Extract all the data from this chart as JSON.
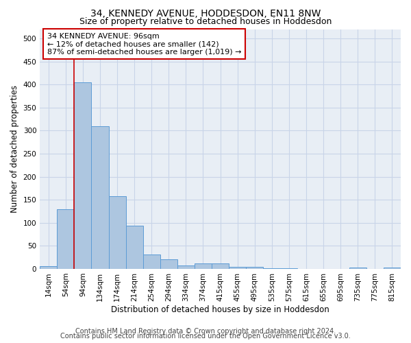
{
  "title": "34, KENNEDY AVENUE, HODDESDON, EN11 8NW",
  "subtitle": "Size of property relative to detached houses in Hoddesdon",
  "xlabel": "Distribution of detached houses by size in Hoddesdon",
  "ylabel": "Number of detached properties",
  "footer_line1": "Contains HM Land Registry data © Crown copyright and database right 2024.",
  "footer_line2": "Contains public sector information licensed under the Open Government Licence v3.0.",
  "bin_labels": [
    "14sqm",
    "54sqm",
    "94sqm",
    "134sqm",
    "174sqm",
    "214sqm",
    "254sqm",
    "294sqm",
    "334sqm",
    "374sqm",
    "415sqm",
    "455sqm",
    "495sqm",
    "535sqm",
    "575sqm",
    "615sqm",
    "655sqm",
    "695sqm",
    "735sqm",
    "775sqm",
    "815sqm"
  ],
  "bar_values": [
    6,
    130,
    405,
    310,
    157,
    93,
    31,
    21,
    7,
    12,
    12,
    5,
    5,
    2,
    2,
    0,
    0,
    0,
    3,
    0,
    3
  ],
  "bar_color": "#adc6e0",
  "bar_edge_color": "#5b9bd5",
  "property_line_color": "#cc0000",
  "annotation_text": "34 KENNEDY AVENUE: 96sqm\n← 12% of detached houses are smaller (142)\n87% of semi-detached houses are larger (1,019) →",
  "annotation_box_color": "#ffffff",
  "annotation_box_edge_color": "#cc0000",
  "ylim": [
    0,
    520
  ],
  "yticks": [
    0,
    50,
    100,
    150,
    200,
    250,
    300,
    350,
    400,
    450,
    500
  ],
  "plot_bg_color": "#e8eef5",
  "background_color": "#ffffff",
  "grid_color": "#c8d4e8",
  "title_fontsize": 10,
  "subtitle_fontsize": 9,
  "axis_label_fontsize": 8.5,
  "tick_fontsize": 7.5,
  "annotation_fontsize": 8,
  "footer_fontsize": 7
}
